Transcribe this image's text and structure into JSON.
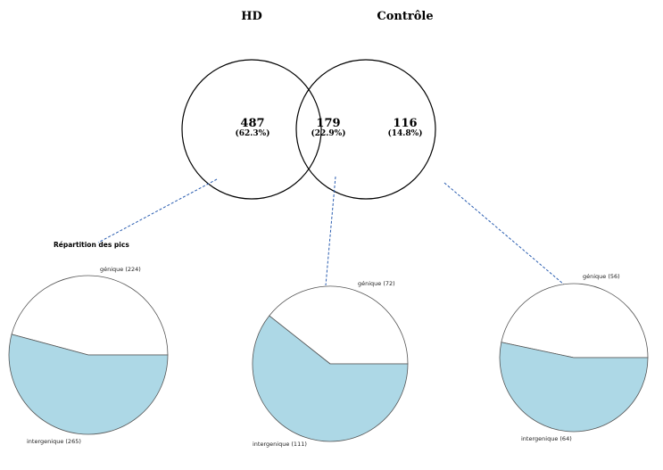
{
  "venn": {
    "sets": [
      {
        "name": "HD"
      },
      {
        "name": "Contrôle"
      }
    ],
    "regions": [
      {
        "count": "487",
        "percent": "(62.3%)"
      },
      {
        "count": "179",
        "percent": "(22.9%)"
      },
      {
        "count": "116",
        "percent": "(14.8%)"
      }
    ]
  },
  "pies": {
    "title": "Répartition des pics",
    "colors": {
      "genique": "#ffffff",
      "intergenique": "#add8e6",
      "stroke": "#555555",
      "connector": "#2a5db0"
    }
  },
  "chart_data": [
    {
      "type": "pie",
      "title": "Répartition des pics",
      "labels": [
        "génique (224)",
        "intergenique (265)"
      ],
      "values": [
        224,
        265
      ]
    },
    {
      "type": "pie",
      "title": "",
      "labels": [
        "génique (72)",
        "intergenique (111)"
      ],
      "values": [
        72,
        111
      ]
    },
    {
      "type": "pie",
      "title": "",
      "labels": [
        "génique (56)",
        "intergenique (64)"
      ],
      "values": [
        56,
        64
      ]
    }
  ]
}
